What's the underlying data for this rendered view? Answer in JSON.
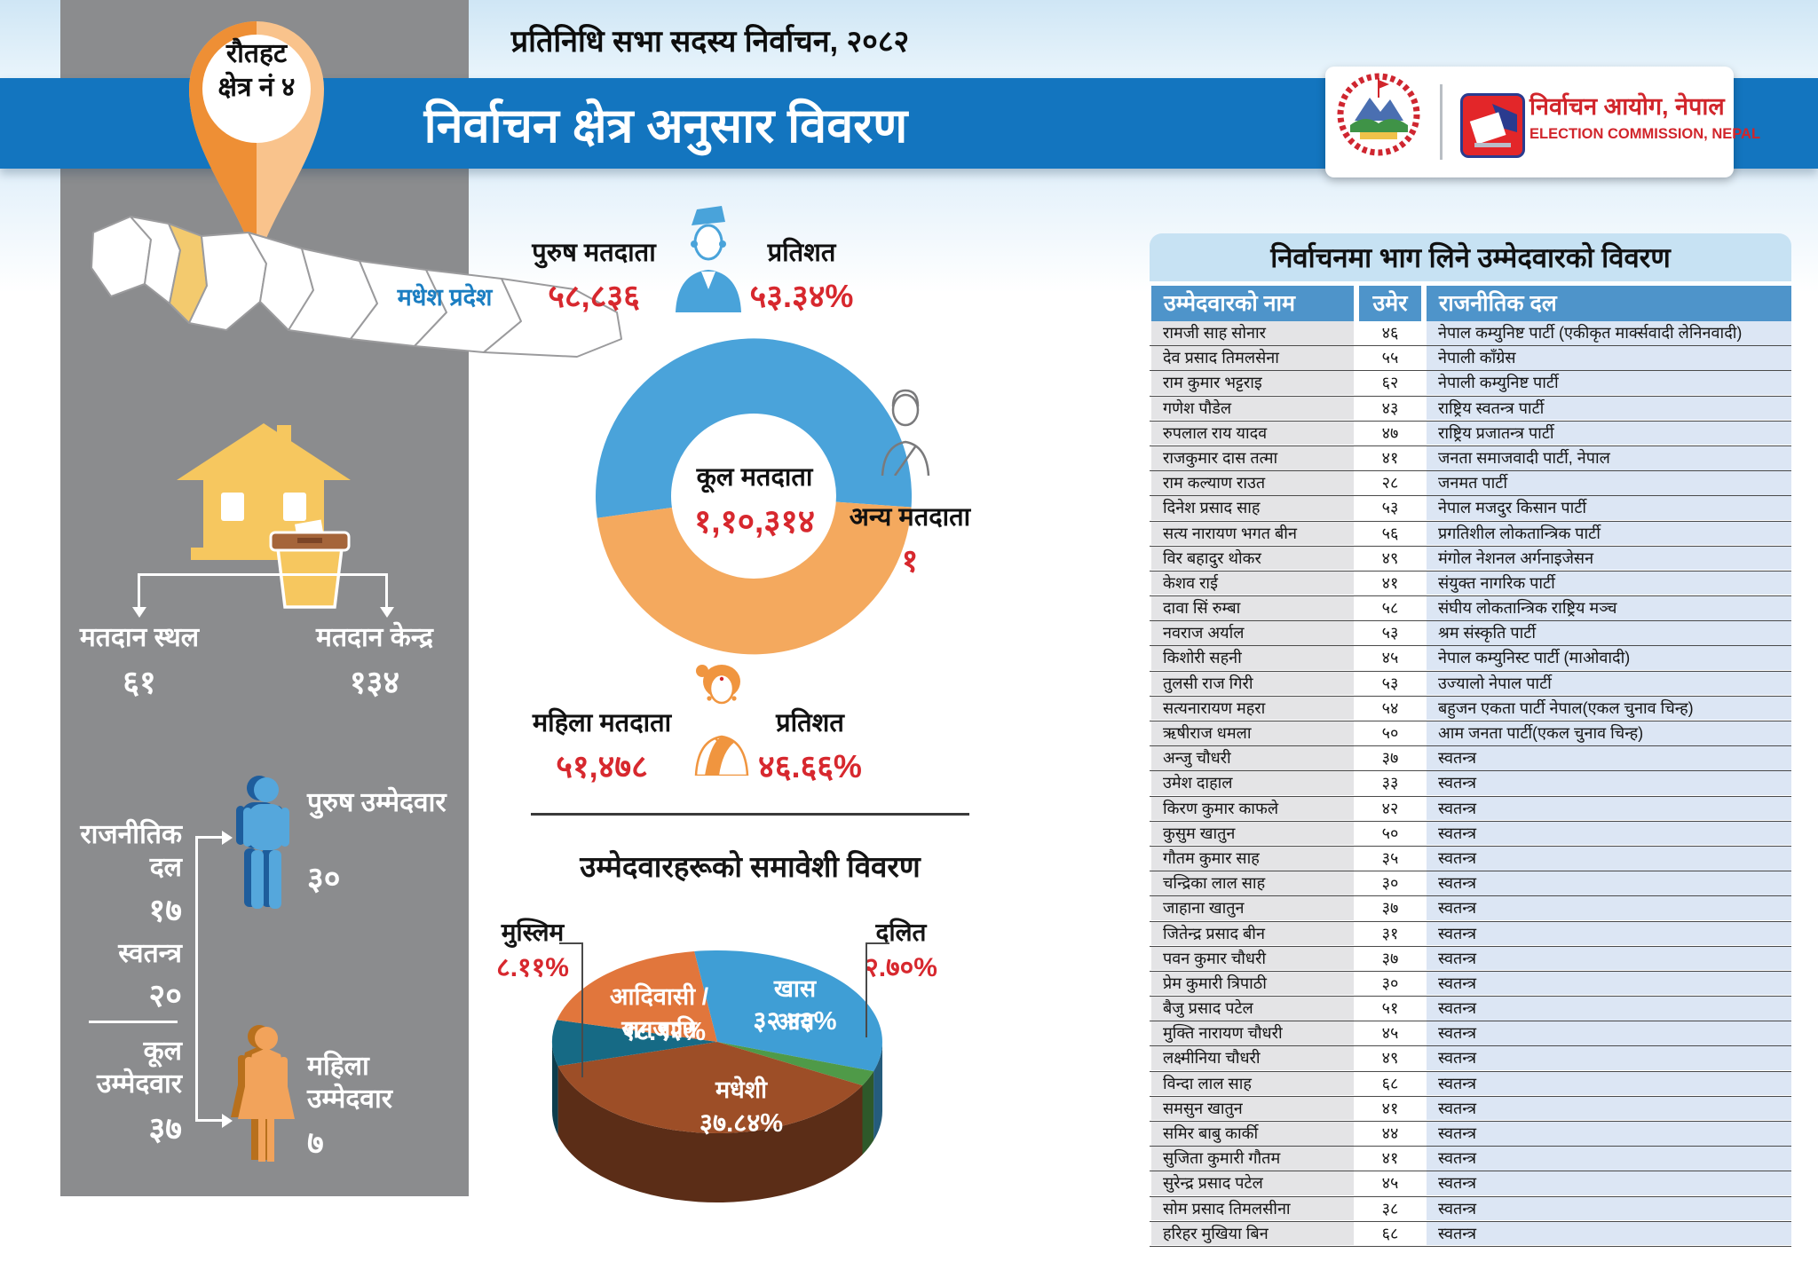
{
  "header": {
    "pretitle": "प्रतिनिधि सभा सदस्य निर्वाचन, २०८२",
    "title": "निर्वाचन क्षेत्र अनुसार विवरण"
  },
  "branding": {
    "commission_name_np": "निर्वाचन आयोग, नेपाल",
    "commission_name_en": "ELECTION COMMISSION, NEPAL",
    "emblem_icon": "nepal-government-emblem",
    "logo_icon": "election-commission-ballot-logo"
  },
  "pin": {
    "district": "रौतहट",
    "constituency": "क्षेत्र नं ४"
  },
  "map": {
    "province_label": "मधेश प्रदेश",
    "highlight_color": "#f3ca6e"
  },
  "polling": {
    "sthal_label": "मतदान स्थल",
    "sthal_value": "६१",
    "kendra_label": "मतदान केन्द्र",
    "kendra_value": "१३४"
  },
  "candidates_summary": {
    "party_label": "राजनीतिक दल",
    "party_value": "१७",
    "independent_label": "स्वतन्त्र",
    "independent_value": "२०",
    "total_label": "कूल उम्मेदवार",
    "total_value": "३७",
    "male_label": "पुरुष उम्मेदवार",
    "male_value": "३०",
    "female_label": "महिला उम्मेदवार",
    "female_value": "७"
  },
  "voters": {
    "male_label": "पुरुष मतदाता",
    "male_value": "५८,८३६",
    "male_pct_label": "प्रतिशत",
    "male_pct": "५३.३४%",
    "total_label": "कूल मतदाता",
    "total_value": "१,१०,३१४",
    "other_label": "अन्य मतदाता",
    "other_value": "१",
    "female_label": "महिला मतदाता",
    "female_value": "५१,४७८",
    "female_pct_label": "प्रतिशत",
    "female_pct": "४६.६६%"
  },
  "inclusion": {
    "title": "उम्मेदवारहरूको समावेशी विवरण"
  },
  "table": {
    "title": "निर्वाचनमा भाग लिने उम्मेदवारको विवरण",
    "headers": [
      "उम्मेदवारको नाम",
      "उमेर",
      "राजनीतिक दल"
    ],
    "rows": [
      {
        "name": "रामजी साह सोनार",
        "age": "४६",
        "party": "नेपाल कम्युनिष्ट पार्टी (एकीकृत मार्क्सवादी लेनिनवादी)"
      },
      {
        "name": "देव प्रसाद तिमलसेना",
        "age": "५५",
        "party": "नेपाली काँग्रेस"
      },
      {
        "name": "राम कुमार भट्टराइ",
        "age": "६२",
        "party": "नेपाली कम्युनिष्ट पार्टी"
      },
      {
        "name": "गणेश पौडेल",
        "age": "४३",
        "party": "राष्ट्रिय स्वतन्त्र पार्टी"
      },
      {
        "name": "रुपलाल राय यादव",
        "age": "४७",
        "party": "राष्ट्रिय प्रजातन्त्र पार्टी"
      },
      {
        "name": "राजकुमार दास तत्मा",
        "age": "४१",
        "party": "जनता समाजवादी पार्टी, नेपाल"
      },
      {
        "name": "राम कल्याण राउत",
        "age": "२८",
        "party": "जनमत पार्टी"
      },
      {
        "name": "दिनेश प्रसाद साह",
        "age": "५३",
        "party": "नेपाल मजदुर किसान पार्टी"
      },
      {
        "name": "सत्य नारायण भगत बीन",
        "age": "५६",
        "party": "प्रगतिशील लोकतान्त्रिक पार्टी"
      },
      {
        "name": "विर बहादुर थोकर",
        "age": "४९",
        "party": "मंगोल नेशनल अर्गनाइजेसन"
      },
      {
        "name": "केशव राई",
        "age": "४१",
        "party": "संयुक्त नागरिक पार्टी"
      },
      {
        "name": "दावा सिं रुम्बा",
        "age": "५८",
        "party": "संघीय लोकतान्त्रिक राष्ट्रिय मञ्च"
      },
      {
        "name": "नवराज अर्याल",
        "age": "५३",
        "party": "श्रम संस्कृति पार्टी"
      },
      {
        "name": "किशोरी सहनी",
        "age": "४५",
        "party": "नेपाल कम्युनिस्ट पार्टी (माओवादी)"
      },
      {
        "name": "तुलसी राज गिरी",
        "age": "५३",
        "party": "उज्यालो नेपाल पार्टी"
      },
      {
        "name": "सत्यनारायण महरा",
        "age": "५४",
        "party": "बहुजन एकता पार्टी नेपाल(एकल चुनाव चिन्ह)"
      },
      {
        "name": "ऋषीराज धमला",
        "age": "५०",
        "party": "आम जनता पार्टी(एकल चुनाव चिन्ह)"
      },
      {
        "name": "अन्जु चौधरी",
        "age": "३७",
        "party": "स्वतन्त्र"
      },
      {
        "name": "उमेश दाहाल",
        "age": "३३",
        "party": "स्वतन्त्र"
      },
      {
        "name": "किरण कुमार काफले",
        "age": "४२",
        "party": "स्वतन्त्र"
      },
      {
        "name": "कुसुम खातुन",
        "age": "५०",
        "party": "स्वतन्त्र"
      },
      {
        "name": "गौतम कुमार साह",
        "age": "३५",
        "party": "स्वतन्त्र"
      },
      {
        "name": "चन्द्रिका लाल साह",
        "age": "३०",
        "party": "स्वतन्त्र"
      },
      {
        "name": "जाहाना खातुन",
        "age": "३७",
        "party": "स्वतन्त्र"
      },
      {
        "name": "जितेन्द्र प्रसाद बीन",
        "age": "३१",
        "party": "स्वतन्त्र"
      },
      {
        "name": "पवन कुमार चौधरी",
        "age": "३७",
        "party": "स्वतन्त्र"
      },
      {
        "name": "प्रेम कुमारी त्रिपाठी",
        "age": "३०",
        "party": "स्वतन्त्र"
      },
      {
        "name": "बैजु प्रसाद पटेल",
        "age": "५१",
        "party": "स्वतन्त्र"
      },
      {
        "name": "मुक्ति नारायण चौधरी",
        "age": "४५",
        "party": "स्वतन्त्र"
      },
      {
        "name": "लक्ष्मीनिया चौधरी",
        "age": "४९",
        "party": "स्वतन्त्र"
      },
      {
        "name": "विन्दा लाल साह",
        "age": "६८",
        "party": "स्वतन्त्र"
      },
      {
        "name": "समसुन खातुन",
        "age": "४१",
        "party": "स्वतन्त्र"
      },
      {
        "name": "समिर बाबु कार्की",
        "age": "४४",
        "party": "स्वतन्त्र"
      },
      {
        "name": "सुजिता कुमारी गौतम",
        "age": "४१",
        "party": "स्वतन्त्र"
      },
      {
        "name": "सुरेन्द्र प्रसाद पटेल",
        "age": "४५",
        "party": "स्वतन्त्र"
      },
      {
        "name": "सोम प्रसाद तिमलसीना",
        "age": "३८",
        "party": "स्वतन्त्र"
      },
      {
        "name": "हरिहर मुखिया बिन",
        "age": "६८",
        "party": "स्वतन्त्र"
      }
    ]
  },
  "chart_data": [
    {
      "type": "pie",
      "subtype": "donut",
      "title": "कूल मतदाता",
      "center_label": "कूल मतदाता",
      "center_value_display": "१,१०,३१४",
      "total": 110314,
      "start_angle_deg": 262,
      "legend_position": "around",
      "slices": [
        {
          "name": "पुरुष मतदाता",
          "value": 58836,
          "pct": 53.34,
          "display_value": "५८,८३६",
          "display_pct": "५३.३४%",
          "color": "#4aa3da"
        },
        {
          "name": "महिला मतदाता",
          "value": 51478,
          "pct": 46.66,
          "display_value": "५१,४७८",
          "display_pct": "४६.६६%",
          "color": "#f4a95e"
        },
        {
          "name": "अन्य मतदाता",
          "value": 1,
          "pct": 0.0,
          "display_value": "१",
          "color": "#999999"
        }
      ]
    },
    {
      "type": "pie",
      "subtype": "pie3d",
      "title": "उम्मेदवारहरूको समावेशी विवरण",
      "start_angle_deg": -8,
      "slices": [
        {
          "name": "खास आय",
          "pct": 32.43,
          "display_pct": "३२.४३%",
          "color": "#3f9ed5",
          "label_position": "inside"
        },
        {
          "name": "दलित",
          "pct": 2.7,
          "display_pct": "२.७०%",
          "color": "#4f9a48",
          "label_position": "outside-right"
        },
        {
          "name": "मधेशी",
          "pct": 37.84,
          "display_pct": "३७.८४%",
          "color": "#9d4e27",
          "label_position": "inside"
        },
        {
          "name": "मुस्लिम",
          "pct": 8.11,
          "display_pct": "८.११%",
          "color": "#166a85",
          "label_position": "outside-left"
        },
        {
          "name": "आदिवासी / जनजाति",
          "pct": 18.92,
          "display_pct": "१८.९२%",
          "color": "#e1763c",
          "label_position": "inside"
        }
      ]
    }
  ]
}
